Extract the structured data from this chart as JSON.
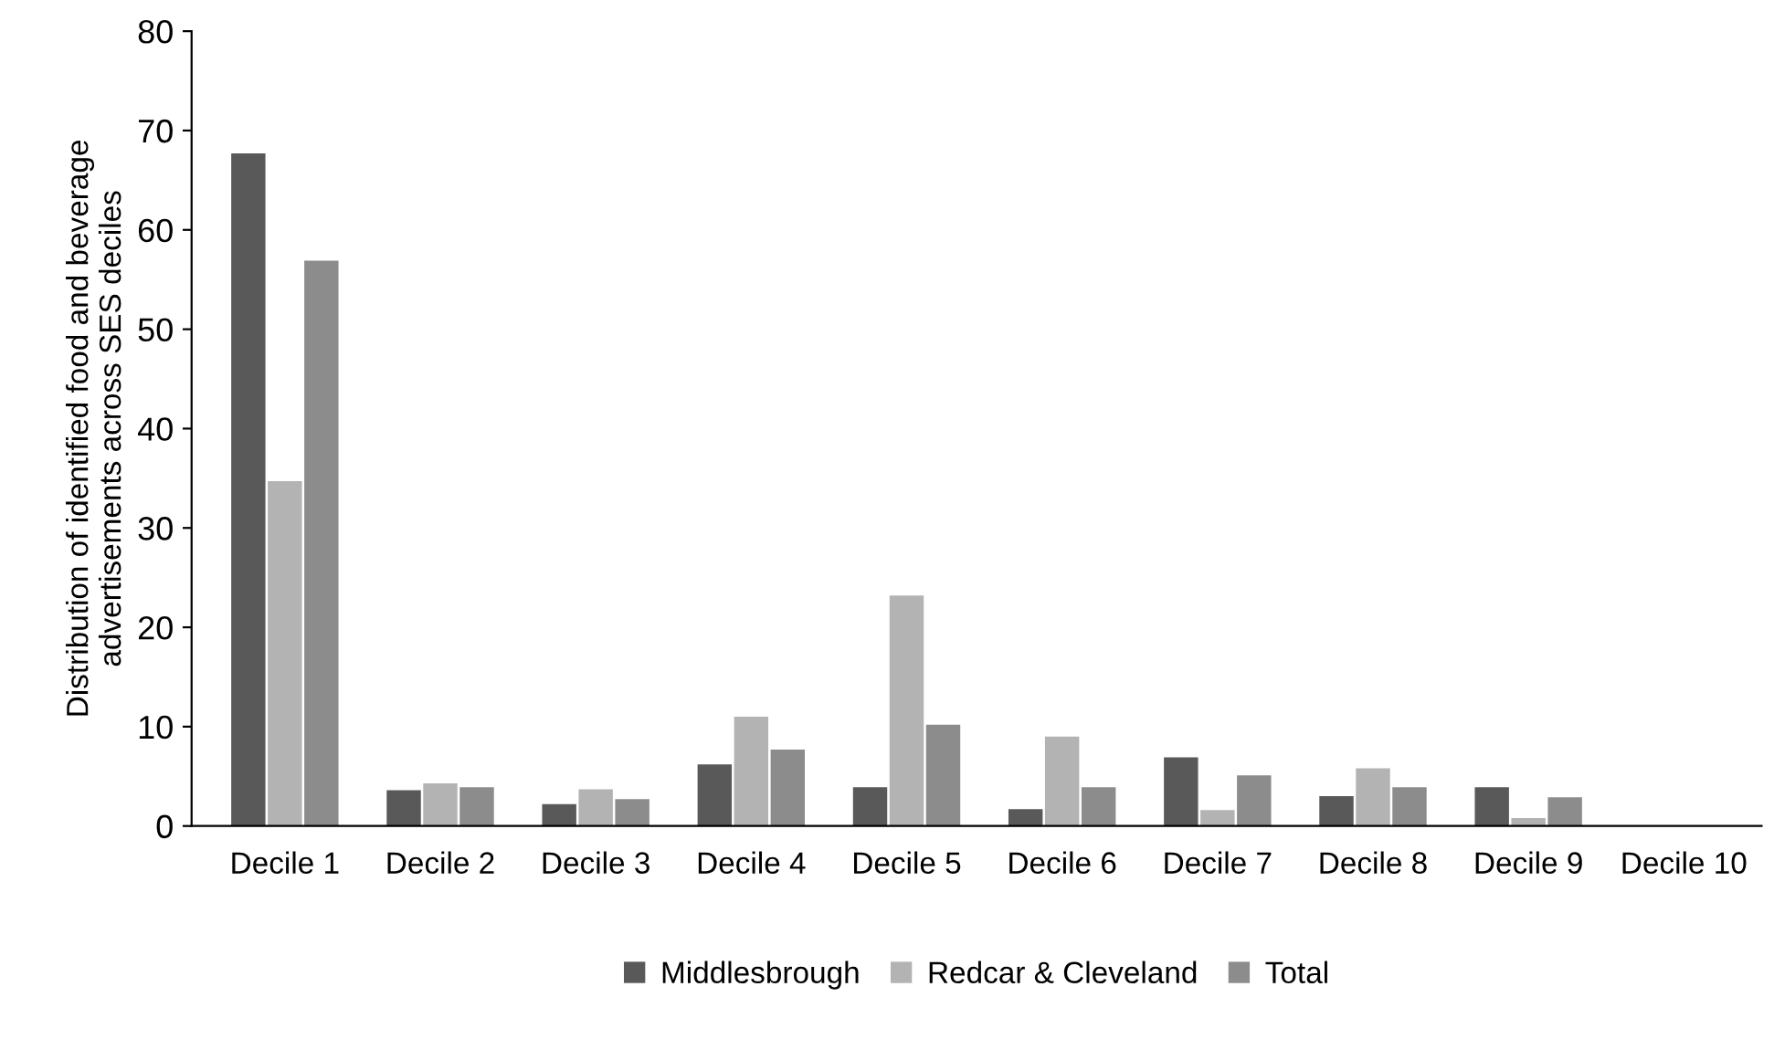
{
  "chart_data": {
    "type": "bar",
    "ylabel": "Distribution of identified food and beverage\nadvertisements across SES deciles",
    "categories": [
      "Decile 1",
      "Decile 2",
      "Decile 3",
      "Decile 4",
      "Decile 5",
      "Decile 6",
      "Decile 7",
      "Decile 8",
      "Decile 9",
      "Decile 10"
    ],
    "series": [
      {
        "name": "Middlesbrough",
        "color": "#595959",
        "values": [
          67.7,
          3.6,
          2.2,
          6.2,
          3.9,
          1.7,
          6.9,
          3.0,
          3.9,
          0
        ]
      },
      {
        "name": "Redcar & Cleveland",
        "color": "#b3b3b3",
        "values": [
          34.7,
          4.3,
          3.7,
          11.0,
          23.2,
          9.0,
          1.6,
          5.8,
          0.8,
          0
        ]
      },
      {
        "name": "Total",
        "color": "#8c8c8c",
        "values": [
          56.9,
          3.9,
          2.7,
          7.7,
          10.2,
          3.9,
          5.1,
          3.9,
          2.9,
          0
        ]
      }
    ],
    "ylim": [
      0,
      80
    ],
    "yticks": [
      0,
      10,
      20,
      30,
      40,
      50,
      60,
      70,
      80
    ],
    "grid": false,
    "legend": "bottom"
  }
}
